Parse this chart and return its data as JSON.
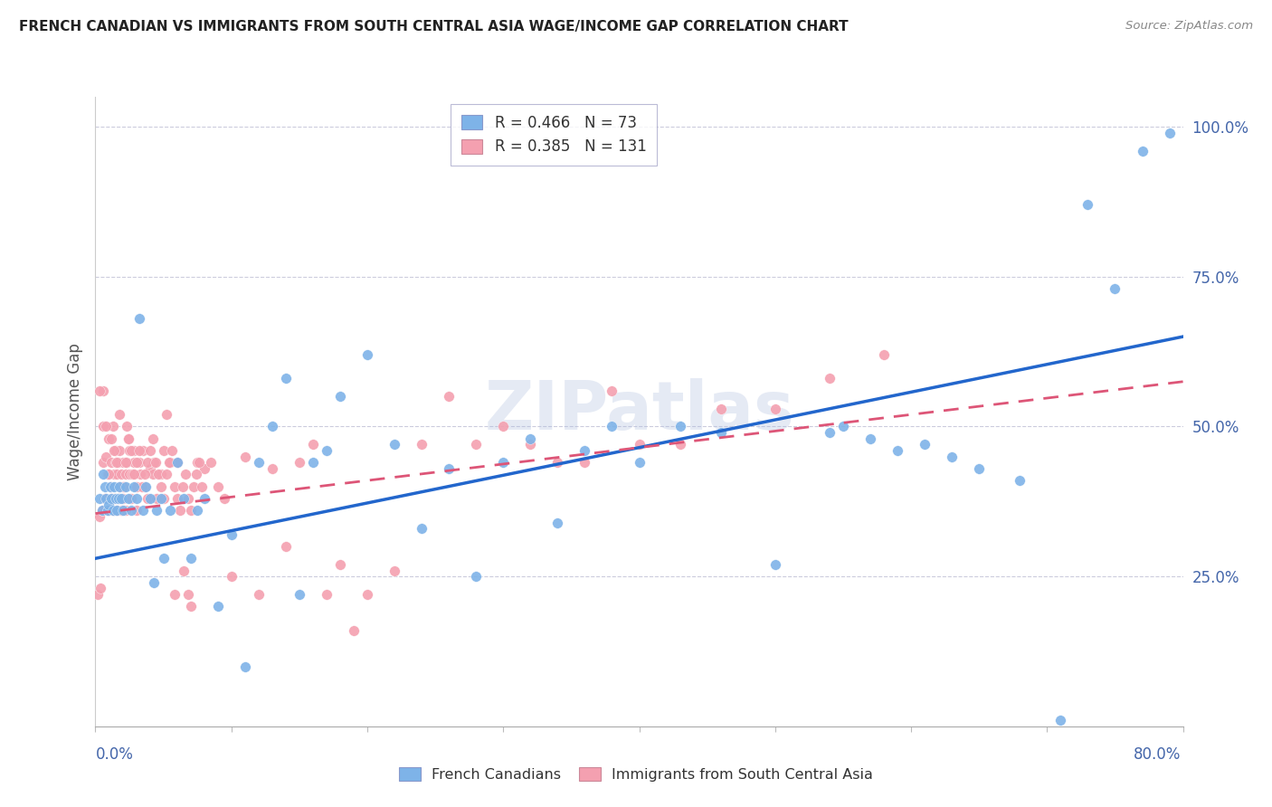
{
  "title": "FRENCH CANADIAN VS IMMIGRANTS FROM SOUTH CENTRAL ASIA WAGE/INCOME GAP CORRELATION CHART",
  "source": "Source: ZipAtlas.com",
  "ylabel": "Wage/Income Gap",
  "watermark": "ZIPatlas",
  "blue_R": 0.466,
  "blue_N": 73,
  "pink_R": 0.385,
  "pink_N": 131,
  "blue_color": "#7EB3E8",
  "pink_color": "#F4A0B0",
  "blue_line_color": "#2266CC",
  "pink_line_color": "#DD5577",
  "legend_label_blue": "French Canadians",
  "legend_label_pink": "Immigrants from South Central Asia",
  "xlim": [
    0.0,
    0.8
  ],
  "ylim": [
    0.0,
    1.05
  ],
  "yticks": [
    0.0,
    0.25,
    0.5,
    0.75,
    1.0
  ],
  "ytick_labels": [
    "",
    "25.0%",
    "50.0%",
    "75.0%",
    "100.0%"
  ],
  "blue_line_x0": 0.0,
  "blue_line_y0": 0.28,
  "blue_line_x1": 0.8,
  "blue_line_y1": 0.65,
  "pink_line_x0": 0.0,
  "pink_line_y0": 0.355,
  "pink_line_x1": 0.8,
  "pink_line_y1": 0.575,
  "blue_points_x": [
    0.003,
    0.005,
    0.006,
    0.007,
    0.008,
    0.009,
    0.01,
    0.011,
    0.012,
    0.013,
    0.014,
    0.015,
    0.016,
    0.017,
    0.018,
    0.019,
    0.02,
    0.022,
    0.024,
    0.026,
    0.028,
    0.03,
    0.032,
    0.035,
    0.037,
    0.04,
    0.043,
    0.045,
    0.048,
    0.05,
    0.055,
    0.06,
    0.065,
    0.07,
    0.075,
    0.08,
    0.09,
    0.1,
    0.11,
    0.12,
    0.13,
    0.14,
    0.15,
    0.16,
    0.17,
    0.18,
    0.2,
    0.22,
    0.24,
    0.26,
    0.28,
    0.3,
    0.32,
    0.34,
    0.36,
    0.38,
    0.4,
    0.43,
    0.46,
    0.5,
    0.54,
    0.55,
    0.57,
    0.59,
    0.61,
    0.63,
    0.65,
    0.68,
    0.71,
    0.73,
    0.75,
    0.77,
    0.79
  ],
  "blue_points_y": [
    0.38,
    0.36,
    0.42,
    0.4,
    0.38,
    0.36,
    0.37,
    0.4,
    0.38,
    0.36,
    0.4,
    0.38,
    0.36,
    0.38,
    0.4,
    0.38,
    0.36,
    0.4,
    0.38,
    0.36,
    0.4,
    0.38,
    0.68,
    0.36,
    0.4,
    0.38,
    0.24,
    0.36,
    0.38,
    0.28,
    0.36,
    0.44,
    0.38,
    0.28,
    0.36,
    0.38,
    0.2,
    0.32,
    0.1,
    0.44,
    0.5,
    0.58,
    0.22,
    0.44,
    0.46,
    0.55,
    0.62,
    0.47,
    0.33,
    0.43,
    0.25,
    0.44,
    0.48,
    0.34,
    0.46,
    0.5,
    0.44,
    0.5,
    0.49,
    0.27,
    0.49,
    0.5,
    0.48,
    0.46,
    0.47,
    0.45,
    0.43,
    0.41,
    0.01,
    0.87,
    0.73,
    0.96,
    0.99
  ],
  "pink_points_x": [
    0.002,
    0.003,
    0.004,
    0.005,
    0.006,
    0.006,
    0.007,
    0.008,
    0.009,
    0.01,
    0.01,
    0.011,
    0.012,
    0.012,
    0.013,
    0.013,
    0.014,
    0.014,
    0.015,
    0.015,
    0.016,
    0.016,
    0.017,
    0.017,
    0.018,
    0.018,
    0.019,
    0.019,
    0.02,
    0.02,
    0.021,
    0.022,
    0.022,
    0.023,
    0.023,
    0.024,
    0.025,
    0.025,
    0.026,
    0.027,
    0.028,
    0.028,
    0.03,
    0.03,
    0.032,
    0.033,
    0.035,
    0.036,
    0.038,
    0.04,
    0.042,
    0.043,
    0.045,
    0.048,
    0.05,
    0.052,
    0.055,
    0.058,
    0.06,
    0.065,
    0.068,
    0.07,
    0.075,
    0.08,
    0.085,
    0.09,
    0.095,
    0.1,
    0.11,
    0.12,
    0.13,
    0.14,
    0.15,
    0.16,
    0.17,
    0.18,
    0.19,
    0.2,
    0.22,
    0.24,
    0.26,
    0.28,
    0.3,
    0.32,
    0.34,
    0.36,
    0.38,
    0.4,
    0.43,
    0.46,
    0.5,
    0.54,
    0.58,
    0.003,
    0.006,
    0.008,
    0.01,
    0.012,
    0.014,
    0.016,
    0.018,
    0.02,
    0.022,
    0.024,
    0.026,
    0.028,
    0.03,
    0.032,
    0.034,
    0.036,
    0.038,
    0.04,
    0.042,
    0.044,
    0.046,
    0.048,
    0.05,
    0.052,
    0.054,
    0.056,
    0.058,
    0.06,
    0.062,
    0.064,
    0.066,
    0.068,
    0.07,
    0.072,
    0.074,
    0.076,
    0.078
  ],
  "pink_points_y": [
    0.22,
    0.35,
    0.23,
    0.36,
    0.56,
    0.44,
    0.38,
    0.45,
    0.42,
    0.36,
    0.48,
    0.4,
    0.38,
    0.44,
    0.5,
    0.36,
    0.42,
    0.38,
    0.44,
    0.46,
    0.36,
    0.42,
    0.38,
    0.44,
    0.46,
    0.4,
    0.36,
    0.42,
    0.38,
    0.44,
    0.4,
    0.36,
    0.42,
    0.5,
    0.44,
    0.48,
    0.46,
    0.42,
    0.38,
    0.42,
    0.44,
    0.46,
    0.4,
    0.36,
    0.44,
    0.42,
    0.46,
    0.4,
    0.38,
    0.43,
    0.42,
    0.44,
    0.38,
    0.42,
    0.46,
    0.52,
    0.44,
    0.22,
    0.44,
    0.26,
    0.22,
    0.2,
    0.44,
    0.43,
    0.44,
    0.4,
    0.38,
    0.25,
    0.45,
    0.22,
    0.43,
    0.3,
    0.44,
    0.47,
    0.22,
    0.27,
    0.16,
    0.22,
    0.26,
    0.47,
    0.55,
    0.47,
    0.5,
    0.47,
    0.44,
    0.44,
    0.56,
    0.47,
    0.47,
    0.53,
    0.53,
    0.58,
    0.62,
    0.56,
    0.5,
    0.5,
    0.42,
    0.48,
    0.46,
    0.44,
    0.52,
    0.4,
    0.44,
    0.48,
    0.46,
    0.42,
    0.44,
    0.46,
    0.4,
    0.42,
    0.44,
    0.46,
    0.48,
    0.44,
    0.42,
    0.4,
    0.38,
    0.42,
    0.44,
    0.46,
    0.4,
    0.38,
    0.36,
    0.4,
    0.42,
    0.38,
    0.36,
    0.4,
    0.42,
    0.44,
    0.4
  ]
}
